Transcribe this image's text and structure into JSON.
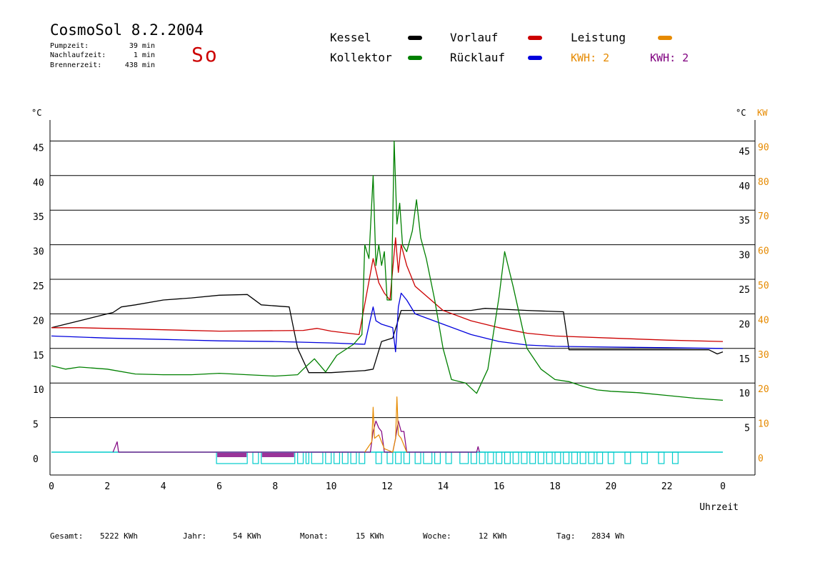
{
  "header": {
    "title": "CosmoSol 8.2.2004",
    "weekday": "So",
    "pumpzeit_label": "Pumpzeit:",
    "pumpzeit_value": "39 min",
    "nachlaufzeit_label": "Nachlaufzeit:",
    "nachlaufzeit_value": "1 min",
    "brennerzeit_label": "Brennerzeit:",
    "brennerzeit_value": "438 min"
  },
  "legend": {
    "kessel": {
      "label": "Kessel",
      "color": "#000000"
    },
    "kollektor": {
      "label": "Kollektor",
      "color": "#008000"
    },
    "vorlauf": {
      "label": "Vorlauf",
      "color": "#cc0000"
    },
    "ruecklauf": {
      "label": "Rücklauf",
      "color": "#0000dd"
    },
    "leistung": {
      "label": "Leistung",
      "color": "#e68a00"
    },
    "kwh_orange": "KWH: 2",
    "kwh_purple": "KWH: 2",
    "purple_color": "#800080"
  },
  "stats": {
    "gesamt_label": "Gesamt:",
    "gesamt_value": "5222 KWh",
    "jahr_label": "Jahr:",
    "jahr_value": "54 KWh",
    "monat_label": "Monat:",
    "monat_value": "15 KWh",
    "woche_label": "Woche:",
    "woche_value": "12 KWh",
    "tag_label": "Tag:",
    "tag_value": "2834 Wh"
  },
  "chart_data": {
    "type": "line",
    "title": "CosmoSol 8.2.2004",
    "xlabel": "Uhrzeit",
    "ylabel_left": "°C",
    "ylabel_right_temp": "°C",
    "ylabel_right_power": "KW",
    "xlim": [
      0,
      24
    ],
    "ylim": [
      0,
      50
    ],
    "grid": true,
    "x_ticks": [
      "0",
      "2",
      "4",
      "6",
      "8",
      "10",
      "12",
      "14",
      "16",
      "18",
      "20",
      "22",
      "0"
    ],
    "y_ticks_left": [
      "0",
      "5",
      "10",
      "15",
      "20",
      "25",
      "30",
      "35",
      "40",
      "45"
    ],
    "y_ticks_right_temp": [
      "5",
      "10",
      "15",
      "20",
      "25",
      "30",
      "35",
      "40",
      "45"
    ],
    "y_ticks_right_power": [
      "0",
      "10",
      "20",
      "30",
      "40",
      "50",
      "60",
      "70",
      "80",
      "90"
    ],
    "series": [
      {
        "name": "Kessel",
        "color": "#000000",
        "x": [
          0,
          1,
          2,
          2.2,
          2.5,
          3,
          4,
          5,
          6,
          7,
          7.5,
          8.5,
          8.8,
          9.2,
          10,
          11.2,
          11.5,
          11.8,
          12.2,
          12.5,
          13,
          15,
          15.5,
          17,
          18.3,
          18.5,
          23.5,
          23.8,
          24
        ],
        "y": [
          18,
          19,
          20,
          20.2,
          21,
          21.3,
          22,
          22.3,
          22.7,
          22.8,
          21.3,
          21,
          15,
          11.5,
          11.5,
          11.8,
          12,
          16,
          16.5,
          20.5,
          20.5,
          20.5,
          20.8,
          20.5,
          20.3,
          14.8,
          14.8,
          14.2,
          14.5
        ]
      },
      {
        "name": "Vorlauf",
        "color": "#cc0000",
        "x": [
          0,
          1,
          3,
          6,
          9,
          9.5,
          10,
          11,
          11.5,
          11.7,
          11.9,
          12.1,
          12.3,
          12.4,
          12.5,
          12.7,
          13,
          14,
          15,
          16,
          17,
          18,
          20,
          22,
          24
        ],
        "y": [
          18,
          18,
          17.8,
          17.5,
          17.6,
          17.9,
          17.5,
          17,
          28,
          24.5,
          23,
          22,
          31,
          26,
          30,
          27,
          24,
          20.5,
          19,
          18,
          17.2,
          16.8,
          16.5,
          16.2,
          16
        ]
      },
      {
        "name": "Rücklauf",
        "color": "#0000dd",
        "x": [
          0,
          2,
          4,
          6,
          8,
          10,
          11.2,
          11.5,
          11.6,
          11.8,
          12.2,
          12.3,
          12.4,
          12.5,
          12.7,
          13,
          14,
          15,
          16,
          17,
          18,
          20,
          22,
          24
        ],
        "y": [
          16.8,
          16.5,
          16.3,
          16.1,
          16,
          15.8,
          15.6,
          21,
          19,
          18.5,
          18,
          14.5,
          21,
          23,
          22,
          20,
          18.5,
          17,
          16,
          15.5,
          15.3,
          15.2,
          15.1,
          15
        ]
      },
      {
        "name": "Kollektor",
        "color": "#008000",
        "x": [
          0,
          0.5,
          1,
          2,
          3,
          4,
          5,
          6,
          7,
          8,
          8.8,
          9,
          9.4,
          9.8,
          10.2,
          10.8,
          11.1,
          11.2,
          11.35,
          11.5,
          11.6,
          11.7,
          11.8,
          11.9,
          12,
          12.15,
          12.25,
          12.35,
          12.45,
          12.55,
          12.7,
          12.9,
          13.05,
          13.2,
          13.4,
          13.7,
          14,
          14.3,
          14.8,
          15.2,
          15.6,
          16,
          16.2,
          16.5,
          17,
          17.5,
          18,
          18.5,
          19,
          19.5,
          20,
          21,
          22,
          23,
          24
        ],
        "y": [
          12.5,
          12,
          12.3,
          12,
          11.3,
          11.2,
          11.2,
          11.4,
          11.2,
          11,
          11.2,
          12,
          13.5,
          11.6,
          14,
          15.6,
          17,
          30,
          28,
          40,
          27,
          30,
          27,
          29,
          22,
          22,
          45,
          33,
          36,
          30,
          29,
          32,
          36.5,
          31,
          28,
          22,
          15,
          10.5,
          10,
          8.5,
          12,
          22.5,
          29,
          24,
          15,
          12,
          10.5,
          10.2,
          9.5,
          9,
          8.8,
          8.6,
          8.2,
          7.8,
          7.5
        ]
      }
    ],
    "power": {
      "name": "Leistung",
      "color": "#e68a00",
      "x": [
        11.2,
        11.45,
        11.5,
        11.55,
        11.7,
        11.8,
        11.9,
        12.2,
        12.3,
        12.35,
        12.4,
        12.5,
        12.6,
        12.7
      ],
      "y": [
        0,
        3,
        13,
        4,
        5,
        3,
        1,
        0,
        4,
        16,
        5,
        4,
        2,
        0
      ]
    },
    "purple_trace": {
      "color": "#800080",
      "x": [
        2.2,
        2.3,
        2.35,
        2.4,
        11.4,
        11.5,
        11.6,
        11.7,
        11.8,
        11.9,
        12.1,
        12.2,
        12.3,
        12.4,
        12.5,
        12.6,
        12.7,
        15.2,
        15.25,
        15.3
      ],
      "y": [
        0,
        1,
        1.5,
        0,
        0,
        3,
        4.5,
        3.5,
        3,
        0,
        0,
        0,
        2,
        4.5,
        3,
        3,
        0,
        0,
        0.8,
        0
      ]
    },
    "pump_segments": {
      "color": "#00cccc",
      "fill_segments": [
        [
          5.9,
          7.0
        ],
        [
          7.5,
          8.7
        ]
      ],
      "segments": [
        [
          5.9,
          7.0
        ],
        [
          7.2,
          7.4
        ],
        [
          7.5,
          8.7
        ],
        [
          8.8,
          9.0
        ],
        [
          9.1,
          9.2
        ],
        [
          9.3,
          9.7
        ],
        [
          9.8,
          10.0
        ],
        [
          10.1,
          10.3
        ],
        [
          10.4,
          10.6
        ],
        [
          10.7,
          10.9
        ],
        [
          11.0,
          11.2
        ],
        [
          11.6,
          11.8
        ],
        [
          12.0,
          12.2
        ],
        [
          12.3,
          12.5
        ],
        [
          12.6,
          12.8
        ],
        [
          13.0,
          13.2
        ],
        [
          13.3,
          13.6
        ],
        [
          13.7,
          13.9
        ],
        [
          14.1,
          14.3
        ],
        [
          14.6,
          14.9
        ],
        [
          15.0,
          15.2
        ],
        [
          15.3,
          15.5
        ],
        [
          15.6,
          15.8
        ],
        [
          15.9,
          16.1
        ],
        [
          16.2,
          16.4
        ],
        [
          16.5,
          16.7
        ],
        [
          16.8,
          17.0
        ],
        [
          17.1,
          17.3
        ],
        [
          17.4,
          17.6
        ],
        [
          17.7,
          17.9
        ],
        [
          18.0,
          18.2
        ],
        [
          18.3,
          18.5
        ],
        [
          18.6,
          18.8
        ],
        [
          18.9,
          19.1
        ],
        [
          19.2,
          19.4
        ],
        [
          19.5,
          19.7
        ],
        [
          19.9,
          20.1
        ],
        [
          20.5,
          20.7
        ],
        [
          21.1,
          21.3
        ],
        [
          21.7,
          21.9
        ],
        [
          22.2,
          22.4
        ]
      ]
    }
  }
}
